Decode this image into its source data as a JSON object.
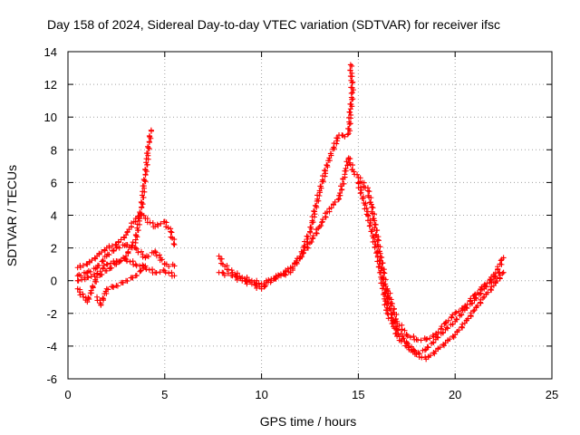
{
  "chart_data": {
    "type": "scatter",
    "title": "Day 158 of 2024, Sidereal Day-to-day VTEC variation (SDTVAR) for receiver ifsc",
    "xlabel": "GPS time / hours",
    "ylabel": "SDTVAR / TECUs",
    "xlim": [
      0,
      25
    ],
    "ylim": [
      -6,
      14
    ],
    "xticks": [
      0,
      5,
      10,
      15,
      20,
      25
    ],
    "yticks": [
      -6,
      -4,
      -2,
      0,
      2,
      4,
      6,
      8,
      10,
      12,
      14
    ],
    "grid": true,
    "marker": "+",
    "color": "#ff0000",
    "series": [
      {
        "values": [
          [
            0.5,
            -0.5
          ],
          [
            0.8,
            -1.0
          ],
          [
            1.0,
            -1.3
          ],
          [
            1.2,
            -0.6
          ],
          [
            1.5,
            0.2
          ],
          [
            2.0,
            0.6
          ],
          [
            2.5,
            1.0
          ],
          [
            3.0,
            1.5
          ],
          [
            3.5,
            2.5
          ],
          [
            3.8,
            4.5
          ],
          [
            4.0,
            6.5
          ],
          [
            4.2,
            8.5
          ],
          [
            4.3,
            9.2
          ]
        ]
      },
      {
        "values": [
          [
            0.5,
            0.8
          ],
          [
            1.0,
            1.0
          ],
          [
            1.5,
            1.5
          ],
          [
            2.0,
            2.0
          ],
          [
            2.5,
            2.2
          ],
          [
            3.0,
            2.8
          ],
          [
            3.5,
            3.8
          ],
          [
            3.8,
            4.0
          ],
          [
            4.0,
            3.8
          ],
          [
            4.5,
            3.3
          ],
          [
            5.0,
            3.6
          ],
          [
            5.3,
            3.0
          ],
          [
            5.5,
            2.2
          ]
        ]
      },
      {
        "values": [
          [
            0.5,
            0.3
          ],
          [
            1.0,
            0.5
          ],
          [
            1.5,
            0.8
          ],
          [
            2.0,
            1.5
          ],
          [
            2.5,
            2.0
          ],
          [
            3.0,
            2.2
          ],
          [
            3.5,
            2.0
          ],
          [
            4.0,
            1.4
          ],
          [
            4.5,
            1.8
          ],
          [
            5.0,
            1.0
          ],
          [
            5.5,
            0.9
          ]
        ]
      },
      {
        "values": [
          [
            0.5,
            0.0
          ],
          [
            1.0,
            0.2
          ],
          [
            1.5,
            0.4
          ],
          [
            2.0,
            1.0
          ],
          [
            2.5,
            1.2
          ],
          [
            3.0,
            1.3
          ],
          [
            3.5,
            1.0
          ],
          [
            4.0,
            0.8
          ],
          [
            4.5,
            0.5
          ],
          [
            5.0,
            0.6
          ],
          [
            5.5,
            0.3
          ]
        ]
      },
      {
        "values": [
          [
            1.5,
            -1.0
          ],
          [
            1.7,
            -1.5
          ],
          [
            2.0,
            -0.5
          ],
          [
            2.5,
            -0.3
          ],
          [
            3.0,
            0.0
          ],
          [
            3.5,
            0.3
          ],
          [
            4.0,
            0.9
          ]
        ]
      },
      {
        "values": [
          [
            7.8,
            1.5
          ],
          [
            8.0,
            1.0
          ],
          [
            8.5,
            0.5
          ],
          [
            9.0,
            0.2
          ],
          [
            9.5,
            0.0
          ],
          [
            10.0,
            -0.2
          ],
          [
            10.5,
            0.1
          ],
          [
            11.0,
            0.4
          ],
          [
            11.5,
            0.8
          ],
          [
            12.0,
            1.4
          ],
          [
            12.5,
            2.3
          ],
          [
            13.0,
            3.3
          ],
          [
            13.5,
            4.4
          ],
          [
            14.0,
            5.0
          ]
        ]
      },
      {
        "values": [
          [
            7.8,
            0.5
          ],
          [
            8.5,
            0.3
          ],
          [
            9.0,
            0.0
          ],
          [
            9.5,
            -0.2
          ],
          [
            10.0,
            -0.5
          ],
          [
            10.5,
            0.0
          ],
          [
            11.0,
            0.3
          ],
          [
            11.5,
            0.5
          ],
          [
            12.0,
            1.5
          ],
          [
            12.5,
            3.0
          ],
          [
            13.0,
            5.5
          ],
          [
            13.5,
            7.5
          ],
          [
            14.0,
            8.9
          ],
          [
            14.3,
            8.8
          ],
          [
            14.5,
            9.0
          ],
          [
            14.6,
            10.5
          ],
          [
            14.7,
            11.5
          ],
          [
            14.6,
            13.2
          ]
        ]
      },
      {
        "values": [
          [
            14.0,
            5.0
          ],
          [
            14.3,
            6.5
          ],
          [
            14.5,
            7.5
          ],
          [
            14.8,
            6.5
          ],
          [
            15.0,
            6.3
          ],
          [
            15.2,
            6.0
          ],
          [
            15.5,
            5.5
          ],
          [
            15.7,
            4.5
          ],
          [
            16.0,
            2.5
          ],
          [
            16.3,
            0.5
          ],
          [
            16.5,
            -1.0
          ],
          [
            16.8,
            -2.5
          ],
          [
            17.0,
            -3.4
          ],
          [
            17.5,
            -4.0
          ],
          [
            18.0,
            -4.5
          ],
          [
            18.5,
            -4.8
          ],
          [
            19.0,
            -4.3
          ],
          [
            19.5,
            -3.8
          ],
          [
            20.0,
            -3.3
          ],
          [
            20.5,
            -2.6
          ],
          [
            21.0,
            -1.8
          ],
          [
            21.5,
            -1.0
          ],
          [
            22.0,
            -0.3
          ],
          [
            22.5,
            0.5
          ]
        ]
      },
      {
        "values": [
          [
            15.0,
            6.0
          ],
          [
            15.5,
            4.0
          ],
          [
            16.0,
            1.5
          ],
          [
            16.5,
            -2.0
          ],
          [
            17.0,
            -3.0
          ],
          [
            17.5,
            -3.8
          ],
          [
            18.0,
            -4.5
          ],
          [
            18.5,
            -4.2
          ],
          [
            19.0,
            -3.6
          ],
          [
            19.5,
            -3.0
          ],
          [
            20.0,
            -2.5
          ],
          [
            20.5,
            -1.8
          ],
          [
            21.0,
            -1.2
          ],
          [
            21.5,
            -0.5
          ],
          [
            22.0,
            0.1
          ],
          [
            22.3,
            0.5
          ]
        ]
      },
      {
        "values": [
          [
            16.5,
            -0.5
          ],
          [
            17.0,
            -2.5
          ],
          [
            17.5,
            -3.3
          ],
          [
            18.0,
            -3.6
          ],
          [
            18.5,
            -3.6
          ],
          [
            19.0,
            -3.3
          ],
          [
            19.5,
            -2.6
          ],
          [
            20.0,
            -2.0
          ],
          [
            20.5,
            -1.6
          ],
          [
            21.0,
            -0.9
          ],
          [
            21.5,
            -0.3
          ],
          [
            22.0,
            0.3
          ],
          [
            22.5,
            1.4
          ]
        ]
      }
    ]
  }
}
